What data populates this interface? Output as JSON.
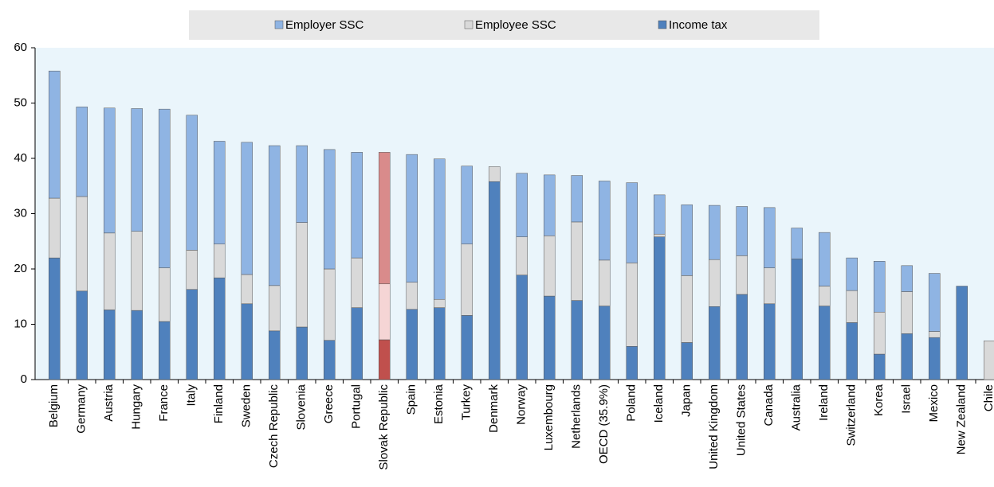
{
  "chart_data": {
    "type": "stacked_bar",
    "categories": [
      "Belgium",
      "Germany",
      "Austria",
      "Hungary",
      "France",
      "Italy",
      "Finland",
      "Sweden",
      "Czech Republic",
      "Slovenia",
      "Greece",
      "Portugal",
      "Slovak Republic",
      "Spain",
      "Estonia",
      "Turkey",
      "Denmark",
      "Norway",
      "Luxembourg",
      "Netherlands",
      "OECD (35.9%)",
      "Poland",
      "Iceland",
      "Japan",
      "United Kingdom",
      "United States",
      "Canada",
      "Australia",
      "Ireland",
      "Switzerland",
      "Korea",
      "Israel",
      "Mexico",
      "New Zealand",
      "Chile"
    ],
    "series": [
      {
        "name": "Employer SSC",
        "color": "#8fb4e3",
        "highlight_color": "#d98b8b",
        "values": [
          23.0,
          16.2,
          22.6,
          22.2,
          28.7,
          24.4,
          18.6,
          23.9,
          25.3,
          13.9,
          21.6,
          19.1,
          23.8,
          23.1,
          25.4,
          14.1,
          0,
          11.5,
          11.0,
          8.4,
          14.3,
          14.5,
          7.1,
          12.8,
          9.8,
          8.9,
          10.9,
          5.6,
          9.7,
          5.9,
          9.2,
          4.7,
          10.5,
          0,
          0
        ]
      },
      {
        "name": "Employee SSC",
        "color": "#d9d9d9",
        "highlight_color": "#f5d5d5",
        "values": [
          10.8,
          17.1,
          13.9,
          14.3,
          9.7,
          7.1,
          6.1,
          5.3,
          8.2,
          18.9,
          12.9,
          9.0,
          10.1,
          4.9,
          1.5,
          12.9,
          2.7,
          6.9,
          10.9,
          14.2,
          8.3,
          15.1,
          0.5,
          12.1,
          8.5,
          7.0,
          6.5,
          0,
          3.6,
          5.8,
          7.6,
          7.6,
          1.1,
          0,
          7.0
        ]
      },
      {
        "name": "Income tax",
        "color": "#4f81bd",
        "highlight_color": "#c0504d",
        "values": [
          22.0,
          16.0,
          12.6,
          12.5,
          10.5,
          16.3,
          18.4,
          13.7,
          8.8,
          9.5,
          7.1,
          13.0,
          7.2,
          12.7,
          13.0,
          11.6,
          35.8,
          18.9,
          15.1,
          14.3,
          13.3,
          6.0,
          25.8,
          6.7,
          13.2,
          15.4,
          13.7,
          21.8,
          13.3,
          10.3,
          4.6,
          8.3,
          7.6,
          16.9,
          0
        ]
      }
    ],
    "highlight_category": "Slovak Republic",
    "ylim": [
      0,
      60
    ],
    "yticks": [
      0,
      10,
      20,
      30,
      40,
      50,
      60
    ]
  }
}
